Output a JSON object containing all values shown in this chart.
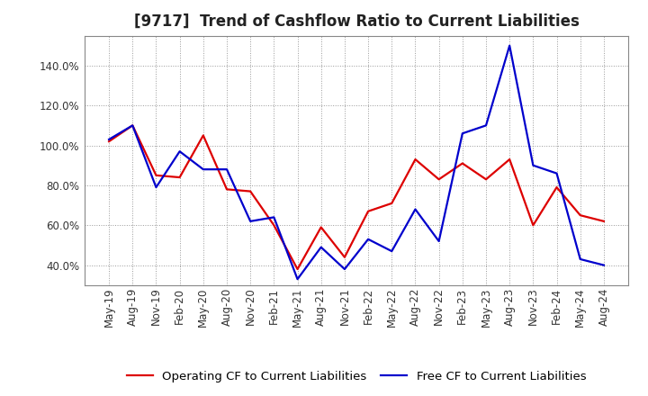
{
  "title": "[9717]  Trend of Cashflow Ratio to Current Liabilities",
  "x_labels": [
    "May-19",
    "Aug-19",
    "Nov-19",
    "Feb-20",
    "May-20",
    "Aug-20",
    "Nov-20",
    "Feb-21",
    "May-21",
    "Aug-21",
    "Nov-21",
    "Feb-22",
    "May-22",
    "Aug-22",
    "Nov-22",
    "Feb-23",
    "May-23",
    "Aug-23",
    "Nov-23",
    "Feb-24",
    "May-24",
    "Aug-24"
  ],
  "operating_cf": [
    102,
    110,
    85,
    84,
    105,
    78,
    77,
    60,
    38,
    59,
    44,
    67,
    71,
    93,
    83,
    91,
    83,
    93,
    60,
    79,
    65,
    62
  ],
  "free_cf": [
    103,
    110,
    79,
    97,
    88,
    88,
    62,
    64,
    33,
    49,
    38,
    53,
    47,
    68,
    52,
    106,
    110,
    150,
    90,
    86,
    43,
    40
  ],
  "ylim": [
    30,
    155
  ],
  "yticks": [
    40.0,
    60.0,
    80.0,
    100.0,
    120.0,
    140.0
  ],
  "operating_color": "#dd0000",
  "free_color": "#0000cc",
  "background_color": "#ffffff",
  "grid_color": "#999999",
  "legend_operating": "Operating CF to Current Liabilities",
  "legend_free": "Free CF to Current Liabilities",
  "title_fontsize": 12,
  "axis_fontsize": 8.5,
  "legend_fontsize": 9.5,
  "line_width": 1.6
}
